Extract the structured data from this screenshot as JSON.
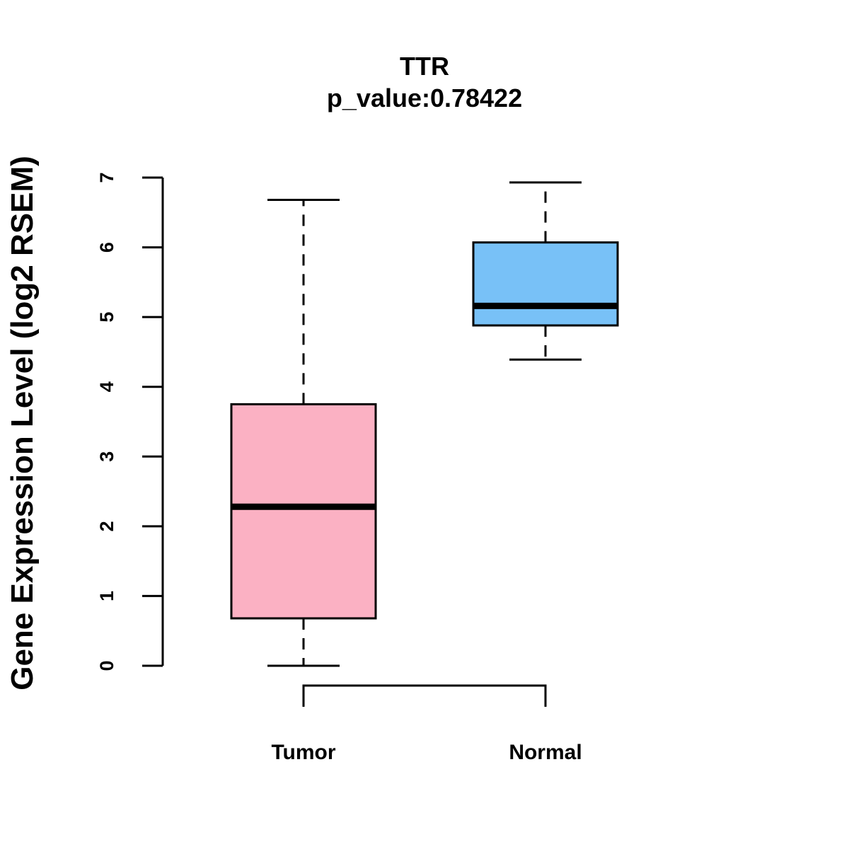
{
  "chart_data": {
    "type": "boxplot",
    "title": "TTR",
    "subtitle": "p_value:0.78422",
    "xlabel": "",
    "ylabel": "Gene Expression Level (log2 RSEM)",
    "ylim": [
      0,
      7
    ],
    "yticks": [
      0,
      1,
      2,
      3,
      4,
      5,
      6,
      7
    ],
    "grid": false,
    "categories": [
      "Tumor",
      "Normal"
    ],
    "series": [
      {
        "name": "Tumor",
        "min": 0.0,
        "q1": 0.68,
        "median": 2.28,
        "q3": 3.75,
        "max": 6.68,
        "color": "#FBB1C3"
      },
      {
        "name": "Normal",
        "min": 4.39,
        "q1": 4.88,
        "median": 5.16,
        "q3": 6.07,
        "max": 6.93,
        "color": "#78C1F7"
      }
    ],
    "annotations": [
      {
        "type": "comparison-bracket",
        "from": "Tumor",
        "to": "Normal"
      }
    ]
  }
}
